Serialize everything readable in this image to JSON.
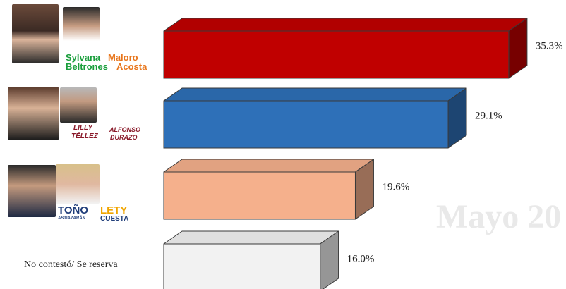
{
  "watermark": "Mayo 20",
  "chart_data": {
    "type": "bar",
    "orientation": "horizontal",
    "style": "3d",
    "categories": [
      "Sylvana Beltrones / Maloro Acosta",
      "Lilly Téllez / Alfonso Durazo",
      "Toño Astiazarán / Lety Cuesta",
      "No contestó/ Se reserva"
    ],
    "values": [
      35.3,
      29.1,
      19.6,
      16.0
    ],
    "labels": [
      "35.3%",
      "29.1%",
      "19.6%",
      "16.0%"
    ],
    "colors": [
      "#c00000",
      "#2e70b8",
      "#f5b08c",
      "#f2f2f2"
    ],
    "xlim": [
      0,
      40
    ],
    "grid": false,
    "legend": "none"
  },
  "candidates": [
    {
      "names": [
        {
          "first": "Sylvana",
          "last": "Beltrones",
          "color": "#1a9e3c"
        },
        {
          "first": "Maloro",
          "last": "Acosta",
          "color": "#e8761c"
        }
      ]
    },
    {
      "names": [
        {
          "first": "LILLY",
          "last": "TÉLLEZ",
          "color": "#8a1a2a"
        },
        {
          "first": "ALFONSO",
          "last": "DURAZO",
          "color": "#8a1a2a"
        }
      ]
    },
    {
      "names": [
        {
          "first": "TOÑO",
          "last": "ASTIAZARÁN",
          "color": "#1f3d7a"
        },
        {
          "first": "LETY",
          "last": "CUESTA",
          "color": "#f0a500"
        }
      ]
    }
  ],
  "no_answer_label": "No contestó/ Se reserva"
}
